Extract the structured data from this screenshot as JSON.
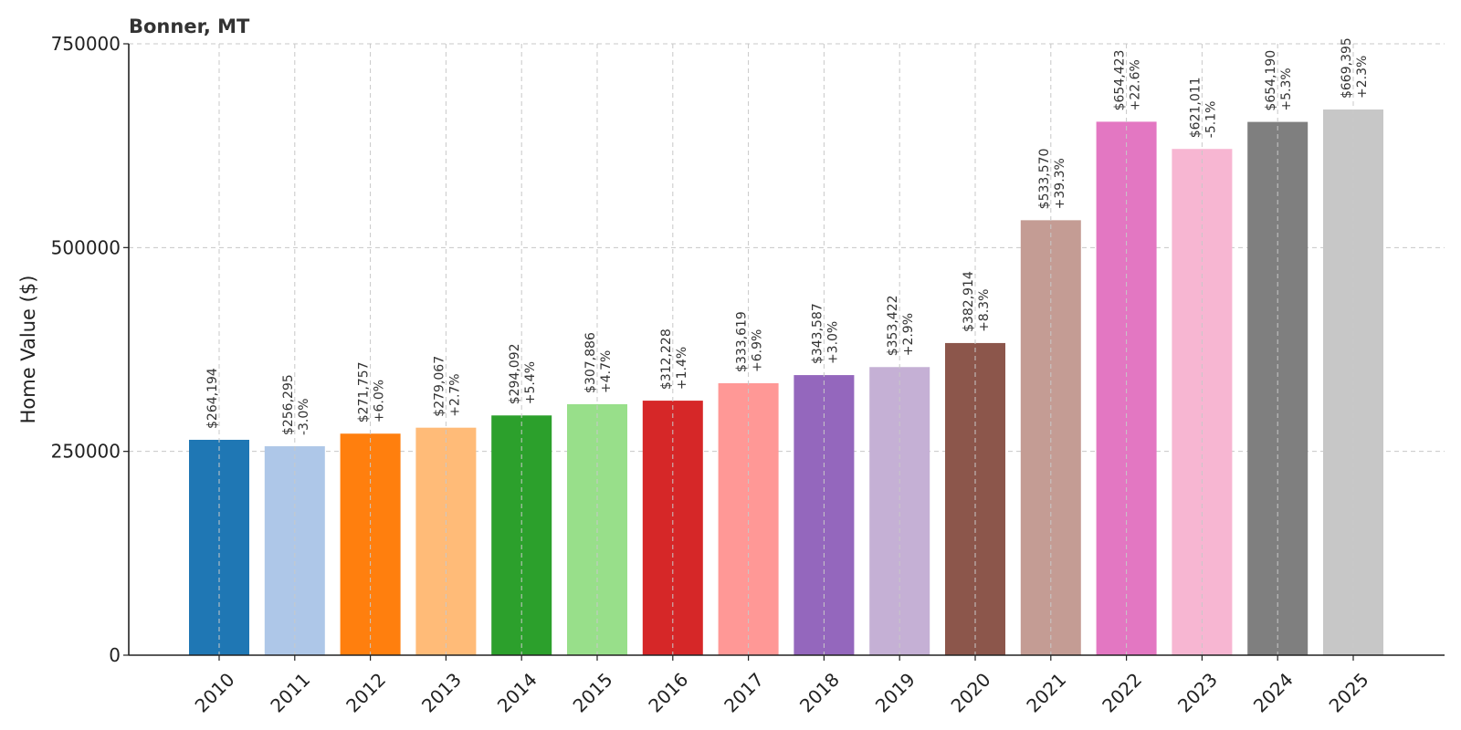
{
  "chart_data": {
    "type": "bar",
    "title": "Bonner, MT",
    "xlabel": "",
    "ylabel": "Home Value ($)",
    "ylim": [
      0,
      750000
    ],
    "yticks": [
      0,
      250000,
      500000,
      750000
    ],
    "ytick_labels": [
      "0",
      "250000",
      "500000",
      "750000"
    ],
    "grid": true,
    "categories": [
      "2010",
      "2011",
      "2012",
      "2013",
      "2014",
      "2015",
      "2016",
      "2017",
      "2018",
      "2019",
      "2020",
      "2021",
      "2022",
      "2023",
      "2024",
      "2025"
    ],
    "values": [
      264194,
      256295,
      271757,
      279067,
      294092,
      307886,
      312228,
      333619,
      343587,
      353422,
      382914,
      533570,
      654423,
      621011,
      654190,
      669395
    ],
    "value_labels": [
      "$264,194",
      "$256,295",
      "$271,757",
      "$279,067",
      "$294,092",
      "$307,886",
      "$312,228",
      "$333,619",
      "$343,587",
      "$353,422",
      "$382,914",
      "$533,570",
      "$654,423",
      "$621,011",
      "$654,190",
      "$669,395"
    ],
    "change_labels": [
      "",
      "-3.0%",
      "+6.0%",
      "+2.7%",
      "+5.4%",
      "+4.7%",
      "+1.4%",
      "+6.9%",
      "+3.0%",
      "+2.9%",
      "+8.3%",
      "+39.3%",
      "+22.6%",
      "-5.1%",
      "+5.3%",
      "+2.3%"
    ],
    "colors": [
      "#1f77b4",
      "#aec7e8",
      "#ff7f0e",
      "#ffbb78",
      "#2ca02c",
      "#98df8a",
      "#d62728",
      "#ff9896",
      "#9467bd",
      "#c5b0d5",
      "#8c564b",
      "#c49c94",
      "#e377c2",
      "#f7b6d2",
      "#7f7f7f",
      "#c7c7c7"
    ]
  }
}
